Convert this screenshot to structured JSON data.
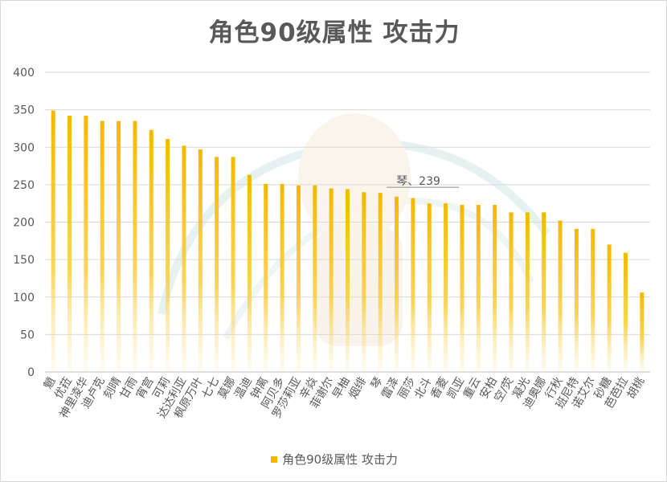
{
  "chart_data": {
    "type": "bar",
    "title": "角色90级属性 攻击力",
    "ylim": [
      0,
      400
    ],
    "yticks": [
      0,
      50,
      100,
      150,
      200,
      250,
      300,
      350,
      400
    ],
    "grid": true,
    "legend_position": "bottom",
    "categories": [
      "魈",
      "优菈",
      "神里凌华",
      "迪卢克",
      "刻晴",
      "甘雨",
      "宵宫",
      "可莉",
      "达达利亚",
      "枫原万叶",
      "七七",
      "莫娜",
      "温迪",
      "钟离",
      "阿贝多",
      "罗莎莉亚",
      "辛焱",
      "菲谢尔",
      "早柚",
      "烟绯",
      "琴",
      "雷泽",
      "丽莎",
      "北斗",
      "香菱",
      "凯亚",
      "重云",
      "安柏",
      "空/荧",
      "凝光",
      "迪奥娜",
      "行秋",
      "班尼特",
      "诺艾尔",
      "砂糖",
      "芭芭拉",
      "胡桃"
    ],
    "series": [
      {
        "name": "角色90级属性 攻击力",
        "color": "#f5b800",
        "values": [
          349,
          342,
          342,
          335,
          335,
          335,
          323,
          311,
          302,
          297,
          287,
          287,
          263,
          251,
          251,
          249,
          249,
          245,
          244,
          240,
          239,
          234,
          232,
          225,
          225,
          223,
          223,
          223,
          213,
          213,
          213,
          202,
          191,
          191,
          170,
          159,
          106
        ]
      }
    ],
    "annotation": {
      "category": "琴",
      "text": "琴、239"
    }
  }
}
